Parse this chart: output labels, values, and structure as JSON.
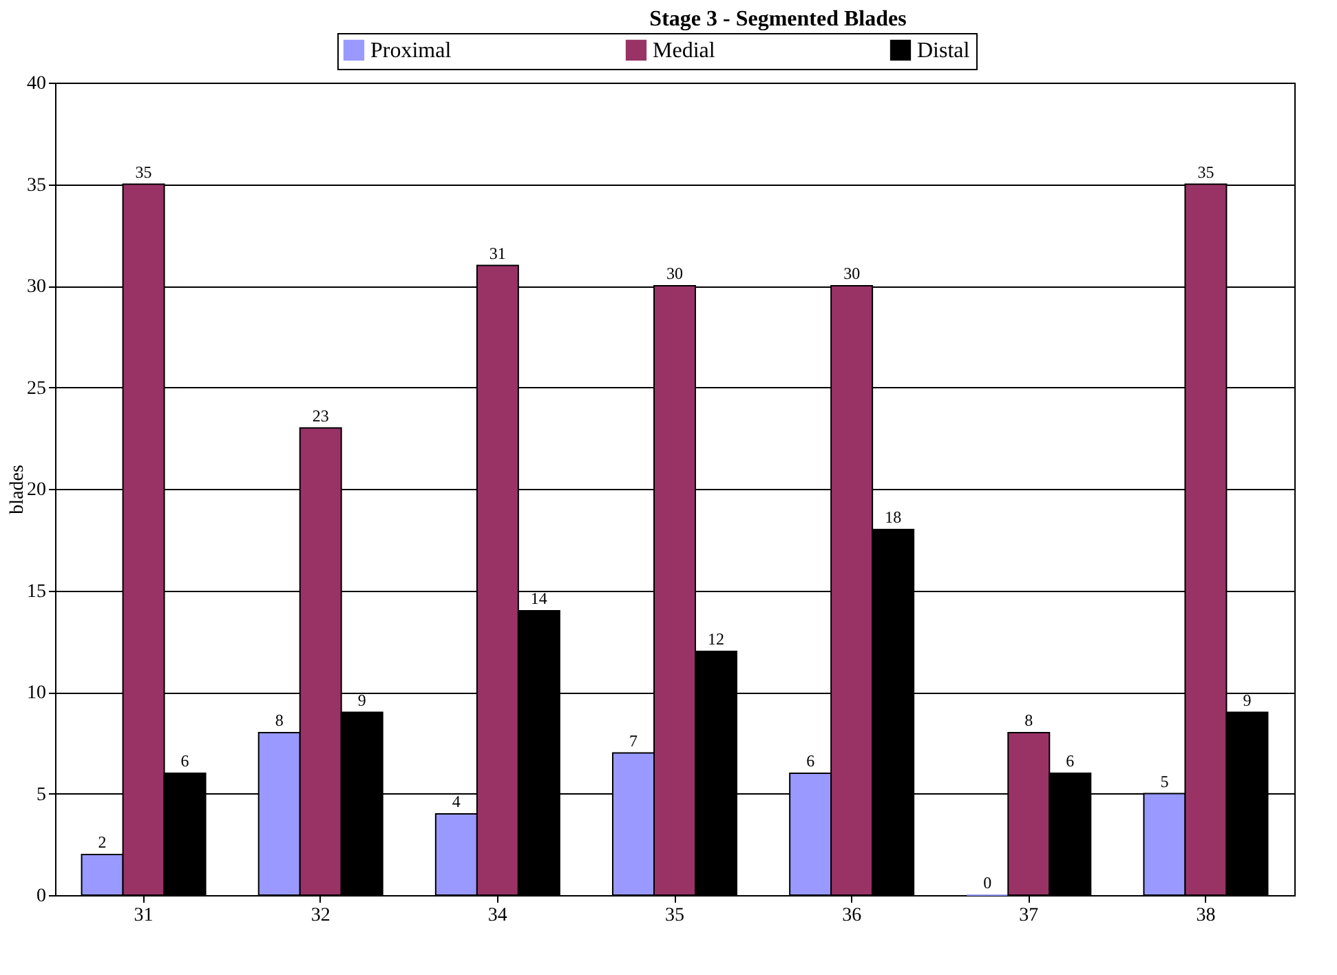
{
  "chart_data": {
    "type": "bar",
    "title": "Stage 3 - Segmented Blades",
    "ylabel": "blades",
    "categories": [
      "31",
      "32",
      "34",
      "35",
      "36",
      "37",
      "38"
    ],
    "series": [
      {
        "name": "Proximal",
        "color": "#9999ff",
        "values": [
          2,
          8,
          4,
          7,
          6,
          0,
          5
        ]
      },
      {
        "name": "Medial",
        "color": "#993366",
        "values": [
          35,
          23,
          31,
          30,
          30,
          8,
          35
        ]
      },
      {
        "name": "Distal",
        "color": "#000000",
        "values": [
          6,
          9,
          14,
          12,
          18,
          6,
          9
        ]
      }
    ],
    "ylim": [
      0,
      40
    ],
    "yticks": [
      0,
      5,
      10,
      15,
      20,
      25,
      30,
      35,
      40
    ],
    "grid": "y",
    "legend": "top",
    "data_labels": true
  }
}
